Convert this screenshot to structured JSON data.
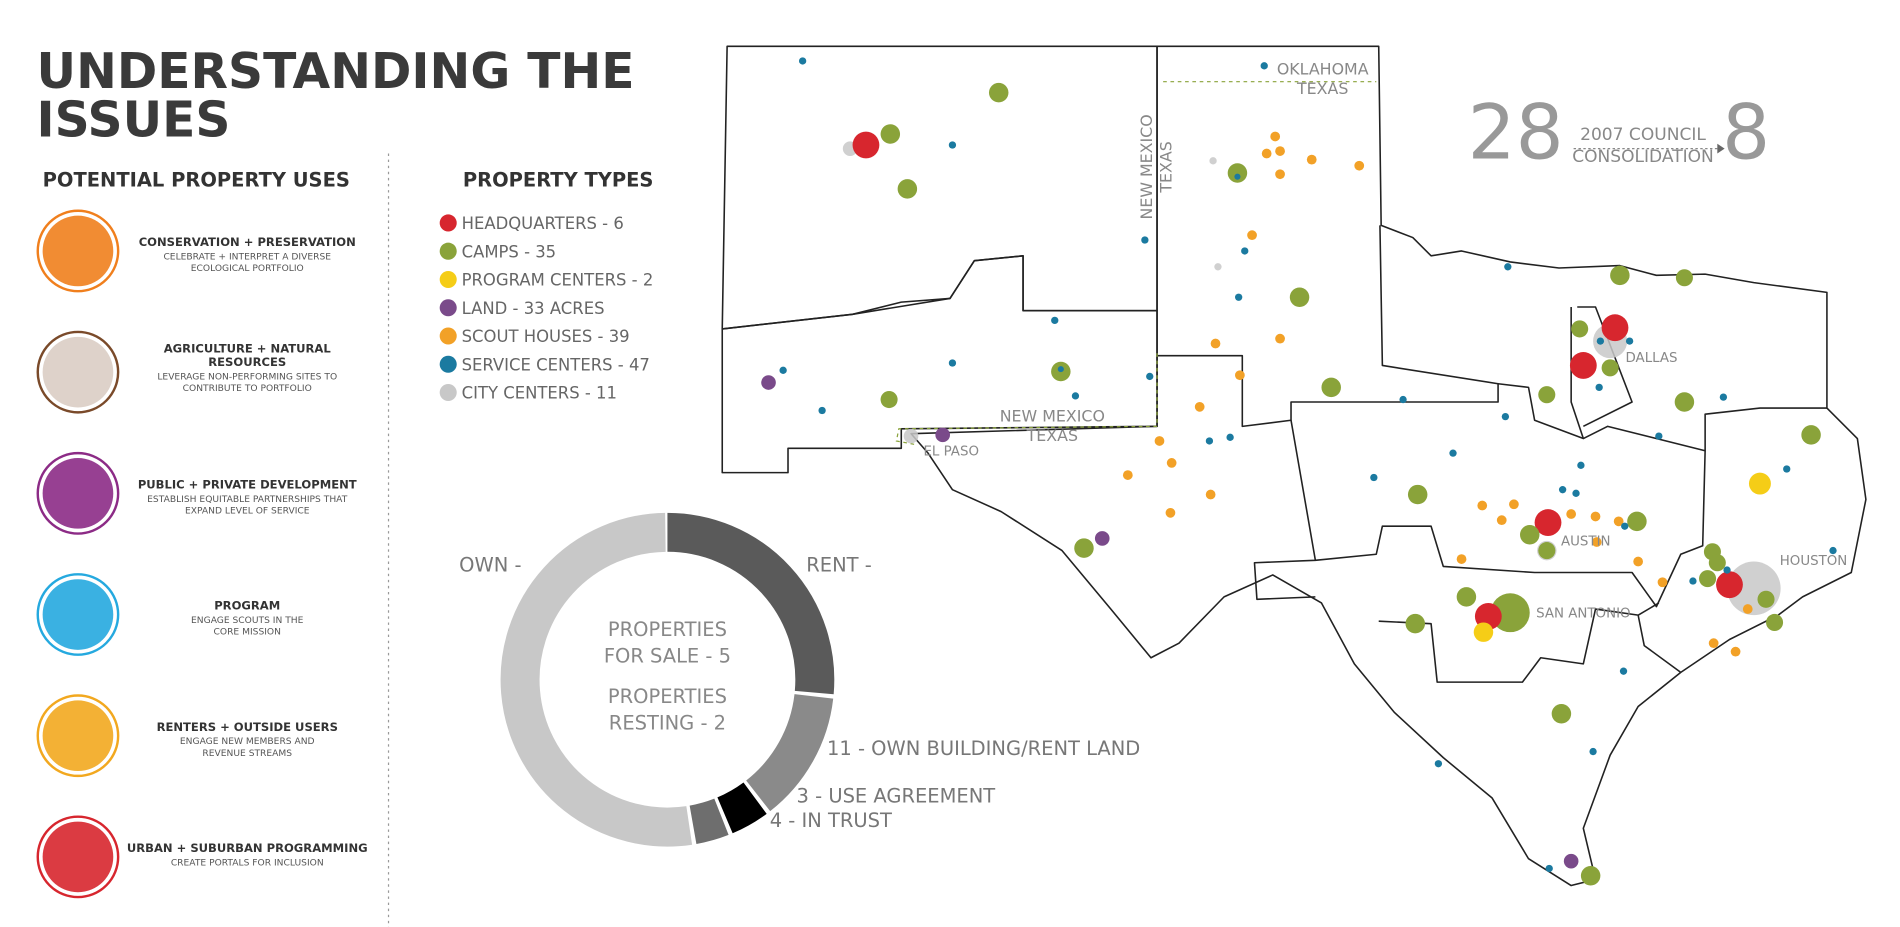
{
  "header": {
    "title": [
      "UNDERSTANDING THE",
      "ISSUES"
    ]
  },
  "uses": {
    "heading": "POTENTIAL PROPERTY USES",
    "items": [
      {
        "title": [
          "CONSERVATION + PRESERVATION"
        ],
        "description": [
          "CELEBRATE + INTERPRET A DIVERSE",
          "ECOLOGICAL PORTFOLIO"
        ]
      },
      {
        "title": [
          "AGRICULTURE + NATURAL",
          "RESOURCES"
        ],
        "description": [
          "LEVERAGE NON-PERFORMING SITES TO",
          "CONTRIBUTE TO PORTFOLIO"
        ]
      },
      {
        "title": [
          "PUBLIC + PRIVATE DEVELOPMENT"
        ],
        "description": [
          "ESTABLISH EQUITABLE PARTNERSHIPS THAT",
          "EXPAND LEVEL OF SERVICE"
        ]
      },
      {
        "title": [
          "PROGRAM"
        ],
        "description": [
          "ENGAGE SCOUTS IN THE",
          "CORE MISSION"
        ]
      },
      {
        "title": [
          "RENTERS + OUTSIDE USERS"
        ],
        "description": [
          "ENGAGE NEW MEMBERS AND",
          "REVENUE STREAMS"
        ]
      },
      {
        "title": [
          "URBAN + SUBURBAN PROGRAMMING"
        ],
        "description": [
          "CREATE PORTALS FOR INCLUSION"
        ]
      }
    ]
  },
  "types": {
    "heading": "PROPERTY TYPES",
    "items": [
      "HEADQUARTERS - 6",
      "CAMPS - 35",
      "PROGRAM CENTERS - 2",
      "LAND - 33 ACRES",
      "SCOUT HOUSES - 39",
      "SERVICE CENTERS - 47",
      "CITY CENTERS - 11"
    ]
  },
  "donut": {
    "own": "OWN -",
    "rent": "RENT -",
    "center": [
      [
        "PROPERTIES",
        "FOR SALE - 5"
      ],
      [
        "PROPERTIES",
        "RESTING - 2"
      ]
    ],
    "segments": [
      "11 - OWN BUILDING/RENT LAND",
      "3 - USE AGREEMENT",
      "4 - IN TRUST"
    ]
  },
  "map": {
    "labels": [
      [
        "OKLAHOMA",
        "TEXAS"
      ],
      [
        "NEW MEXICO",
        "TEXAS"
      ],
      [
        "NEW MEXICO",
        "TEXAS"
      ],
      [
        "EL PASO"
      ],
      [
        "DALLAS"
      ],
      [
        "AUSTIN"
      ],
      [
        "SAN ANTONIO"
      ],
      [
        "HOUSTON"
      ]
    ]
  },
  "stat": {
    "before": "28",
    "label": [
      "2007 COUNCIL",
      "CONSOLIDATION"
    ],
    "after": "8"
  }
}
